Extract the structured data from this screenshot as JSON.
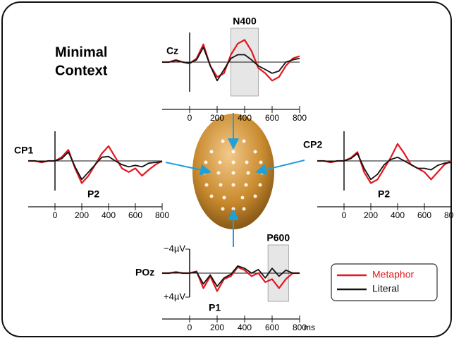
{
  "title_lines": [
    "Minimal",
    "Context"
  ],
  "legend": "lower right",
  "chart_data": [
    {
      "type": "line",
      "title": "Cz",
      "x": [
        -200,
        -150,
        -100,
        -50,
        0,
        50,
        100,
        150,
        200,
        250,
        300,
        350,
        400,
        450,
        500,
        550,
        600,
        650,
        700,
        750,
        800
      ],
      "xlim": [
        -200,
        800
      ],
      "xticks": [
        0,
        200,
        400,
        600,
        800
      ],
      "ylim": [
        4,
        -4
      ],
      "window": [
        300,
        500
      ],
      "window_label": "N400",
      "annotations": [],
      "series": [
        {
          "name": "Metaphor",
          "color": "#e3171f",
          "values": [
            0,
            0,
            -0.3,
            0,
            0.2,
            -0.5,
            -2.4,
            0.5,
            2.0,
            1.5,
            -1.0,
            -2.5,
            -3.0,
            -1.5,
            0.8,
            1.5,
            2.5,
            2.0,
            0.5,
            -0.5,
            -0.8
          ]
        },
        {
          "name": "Literal",
          "color": "#111111",
          "values": [
            0,
            0,
            -0.2,
            0,
            0.1,
            -0.3,
            -2.0,
            0.5,
            2.5,
            1.0,
            -0.5,
            -1.0,
            -1.0,
            -0.3,
            0.5,
            1.0,
            1.5,
            1.2,
            0,
            -0.3,
            -0.5
          ]
        }
      ]
    },
    {
      "type": "line",
      "title": "CP1",
      "x": [
        -200,
        -150,
        -100,
        -50,
        0,
        50,
        100,
        150,
        200,
        250,
        300,
        350,
        400,
        450,
        500,
        550,
        600,
        650,
        700,
        750,
        800
      ],
      "xlim": [
        -200,
        800
      ],
      "xticks": [
        0,
        200,
        400,
        600,
        800
      ],
      "ylim": [
        4,
        -4
      ],
      "annotations": [
        "P2"
      ],
      "series": [
        {
          "name": "Metaphor",
          "color": "#e3171f",
          "values": [
            0,
            0,
            0.2,
            0,
            0,
            -0.5,
            -1.5,
            1.0,
            3.0,
            2.0,
            0.5,
            -1.0,
            -2.0,
            -0.5,
            1.0,
            1.5,
            1.0,
            2.0,
            1.2,
            0.5,
            0
          ]
        },
        {
          "name": "Literal",
          "color": "#111111",
          "values": [
            0,
            0,
            0.1,
            0,
            0,
            -0.3,
            -1.2,
            0.8,
            2.5,
            1.5,
            0.5,
            -0.5,
            -0.6,
            0,
            0.5,
            0.8,
            0.6,
            0.8,
            0.3,
            0.2,
            0.1
          ]
        }
      ]
    },
    {
      "type": "line",
      "title": "CP2",
      "x": [
        -200,
        -150,
        -100,
        -50,
        0,
        50,
        100,
        150,
        200,
        250,
        300,
        350,
        400,
        450,
        500,
        550,
        600,
        650,
        700,
        750,
        800
      ],
      "xlim": [
        -200,
        800
      ],
      "xticks": [
        0,
        200,
        400,
        600,
        800
      ],
      "ylim": [
        4,
        -4
      ],
      "annotations": [
        "P2"
      ],
      "series": [
        {
          "name": "Metaphor",
          "color": "#e3171f",
          "values": [
            0,
            0,
            0.2,
            0,
            0,
            -0.4,
            -1.2,
            1.5,
            3.0,
            2.5,
            1.0,
            -0.5,
            -2.3,
            -1.0,
            0.5,
            1.0,
            1.5,
            2.5,
            1.5,
            0.5,
            0
          ]
        },
        {
          "name": "Literal",
          "color": "#111111",
          "values": [
            0,
            0,
            0.1,
            0,
            0,
            -0.3,
            -1.0,
            1.0,
            2.5,
            1.8,
            0.5,
            -0.2,
            -0.5,
            0,
            0.5,
            1.0,
            1.0,
            1.2,
            0.6,
            0.3,
            0.2
          ]
        }
      ]
    },
    {
      "type": "line",
      "title": "POz",
      "x": [
        -200,
        -150,
        -100,
        -50,
        0,
        50,
        100,
        150,
        200,
        250,
        300,
        350,
        400,
        450,
        500,
        550,
        600,
        650,
        700,
        750,
        800
      ],
      "xlim": [
        -200,
        800
      ],
      "xticks": [
        0,
        200,
        400,
        600,
        800
      ],
      "x_unit": "ms",
      "ylim": [
        4,
        -4
      ],
      "yticks": [
        {
          "value": -4,
          "label": "−4µV"
        },
        {
          "value": 4,
          "label": "+4µV"
        }
      ],
      "window": [
        570,
        720
      ],
      "window_label": "P600",
      "annotations": [
        "P1"
      ],
      "series": [
        {
          "name": "Metaphor",
          "color": "#e3171f",
          "values": [
            0,
            0,
            -0.2,
            0,
            0,
            -0.3,
            2.5,
            0.5,
            3.0,
            1.0,
            0.5,
            -1.0,
            -0.5,
            0.5,
            0,
            1.5,
            1.0,
            2.5,
            1.0,
            0,
            0
          ]
        },
        {
          "name": "Literal",
          "color": "#111111",
          "values": [
            0,
            0,
            -0.1,
            0,
            0,
            -0.2,
            1.8,
            0.3,
            2.2,
            0.8,
            0.2,
            -1.2,
            -0.8,
            0,
            -0.6,
            0.8,
            -0.8,
            0.5,
            -0.5,
            0,
            0
          ]
        }
      ]
    }
  ]
}
